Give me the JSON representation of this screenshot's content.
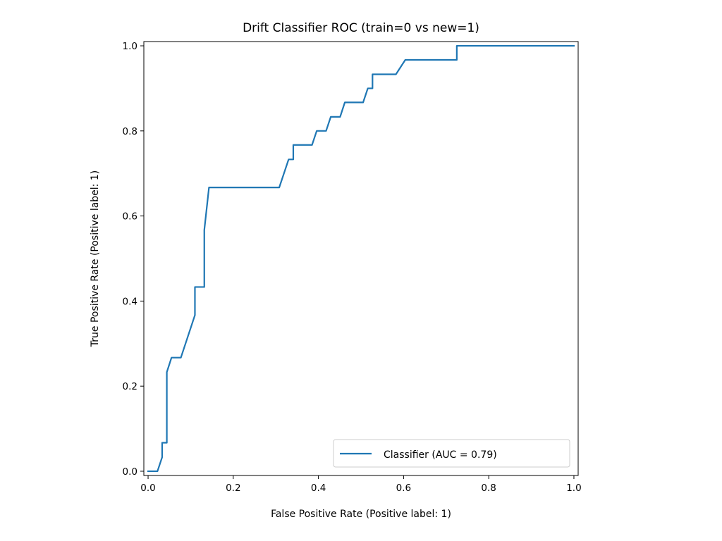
{
  "chart_data": {
    "type": "line",
    "title": "Drift Classifier ROC (train=0 vs new=1)",
    "xlabel": "False Positive Rate (Positive label: 1)",
    "ylabel": "True Positive Rate (Positive label: 1)",
    "xlim": [
      -0.01,
      1.01
    ],
    "ylim": [
      -0.01,
      1.01
    ],
    "xticks": [
      "0.0",
      "0.2",
      "0.4",
      "0.6",
      "0.8",
      "1.0"
    ],
    "yticks": [
      "0.0",
      "0.2",
      "0.4",
      "0.6",
      "0.8",
      "1.0"
    ],
    "grid": false,
    "legend_position": "lower-right",
    "series": [
      {
        "name": "Classifier (AUC = 0.79)",
        "color": "#1f77b4",
        "x": [
          0.0,
          0.022,
          0.022,
          0.033,
          0.033,
          0.044,
          0.044,
          0.055,
          0.077,
          0.11,
          0.11,
          0.132,
          0.132,
          0.143,
          0.308,
          0.33,
          0.341,
          0.341,
          0.385,
          0.396,
          0.418,
          0.429,
          0.451,
          0.462,
          0.505,
          0.516,
          0.527,
          0.527,
          0.582,
          0.604,
          0.725,
          0.725,
          1.0
        ],
        "y": [
          0.0,
          0.0,
          0.0,
          0.033,
          0.067,
          0.067,
          0.233,
          0.267,
          0.267,
          0.367,
          0.433,
          0.433,
          0.567,
          0.667,
          0.667,
          0.733,
          0.733,
          0.767,
          0.767,
          0.8,
          0.8,
          0.833,
          0.833,
          0.867,
          0.867,
          0.9,
          0.9,
          0.933,
          0.933,
          0.967,
          0.967,
          1.0,
          1.0
        ]
      }
    ]
  }
}
